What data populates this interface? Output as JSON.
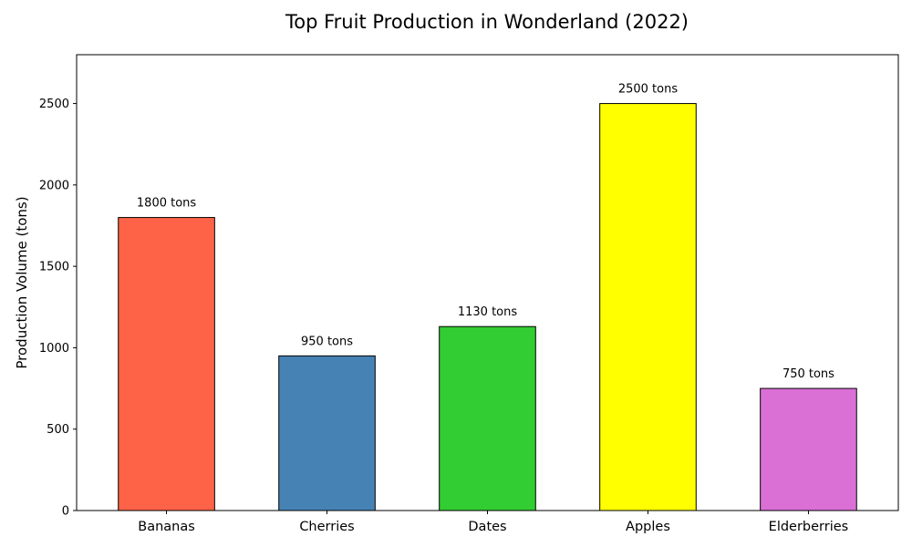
{
  "chart_data": {
    "type": "bar",
    "title": "Top Fruit Production in Wonderland (2022)",
    "xlabel": "",
    "ylabel": "Production Volume (tons)",
    "categories": [
      "Bananas",
      "Cherries",
      "Dates",
      "Apples",
      "Elderberries"
    ],
    "values": [
      1800,
      950,
      1130,
      2500,
      750
    ],
    "data_labels": [
      "1800 tons",
      "950 tons",
      "1130 tons",
      "2500 tons",
      "750 tons"
    ],
    "colors": [
      "#ff6347",
      "#4682b4",
      "#32cd32",
      "#ffff00",
      "#da70d6"
    ],
    "edge_color": "#000000",
    "ylim": [
      0,
      2800
    ],
    "yticks": [
      0,
      500,
      1000,
      1500,
      2000,
      2500
    ],
    "grid": false,
    "legend": "none"
  }
}
